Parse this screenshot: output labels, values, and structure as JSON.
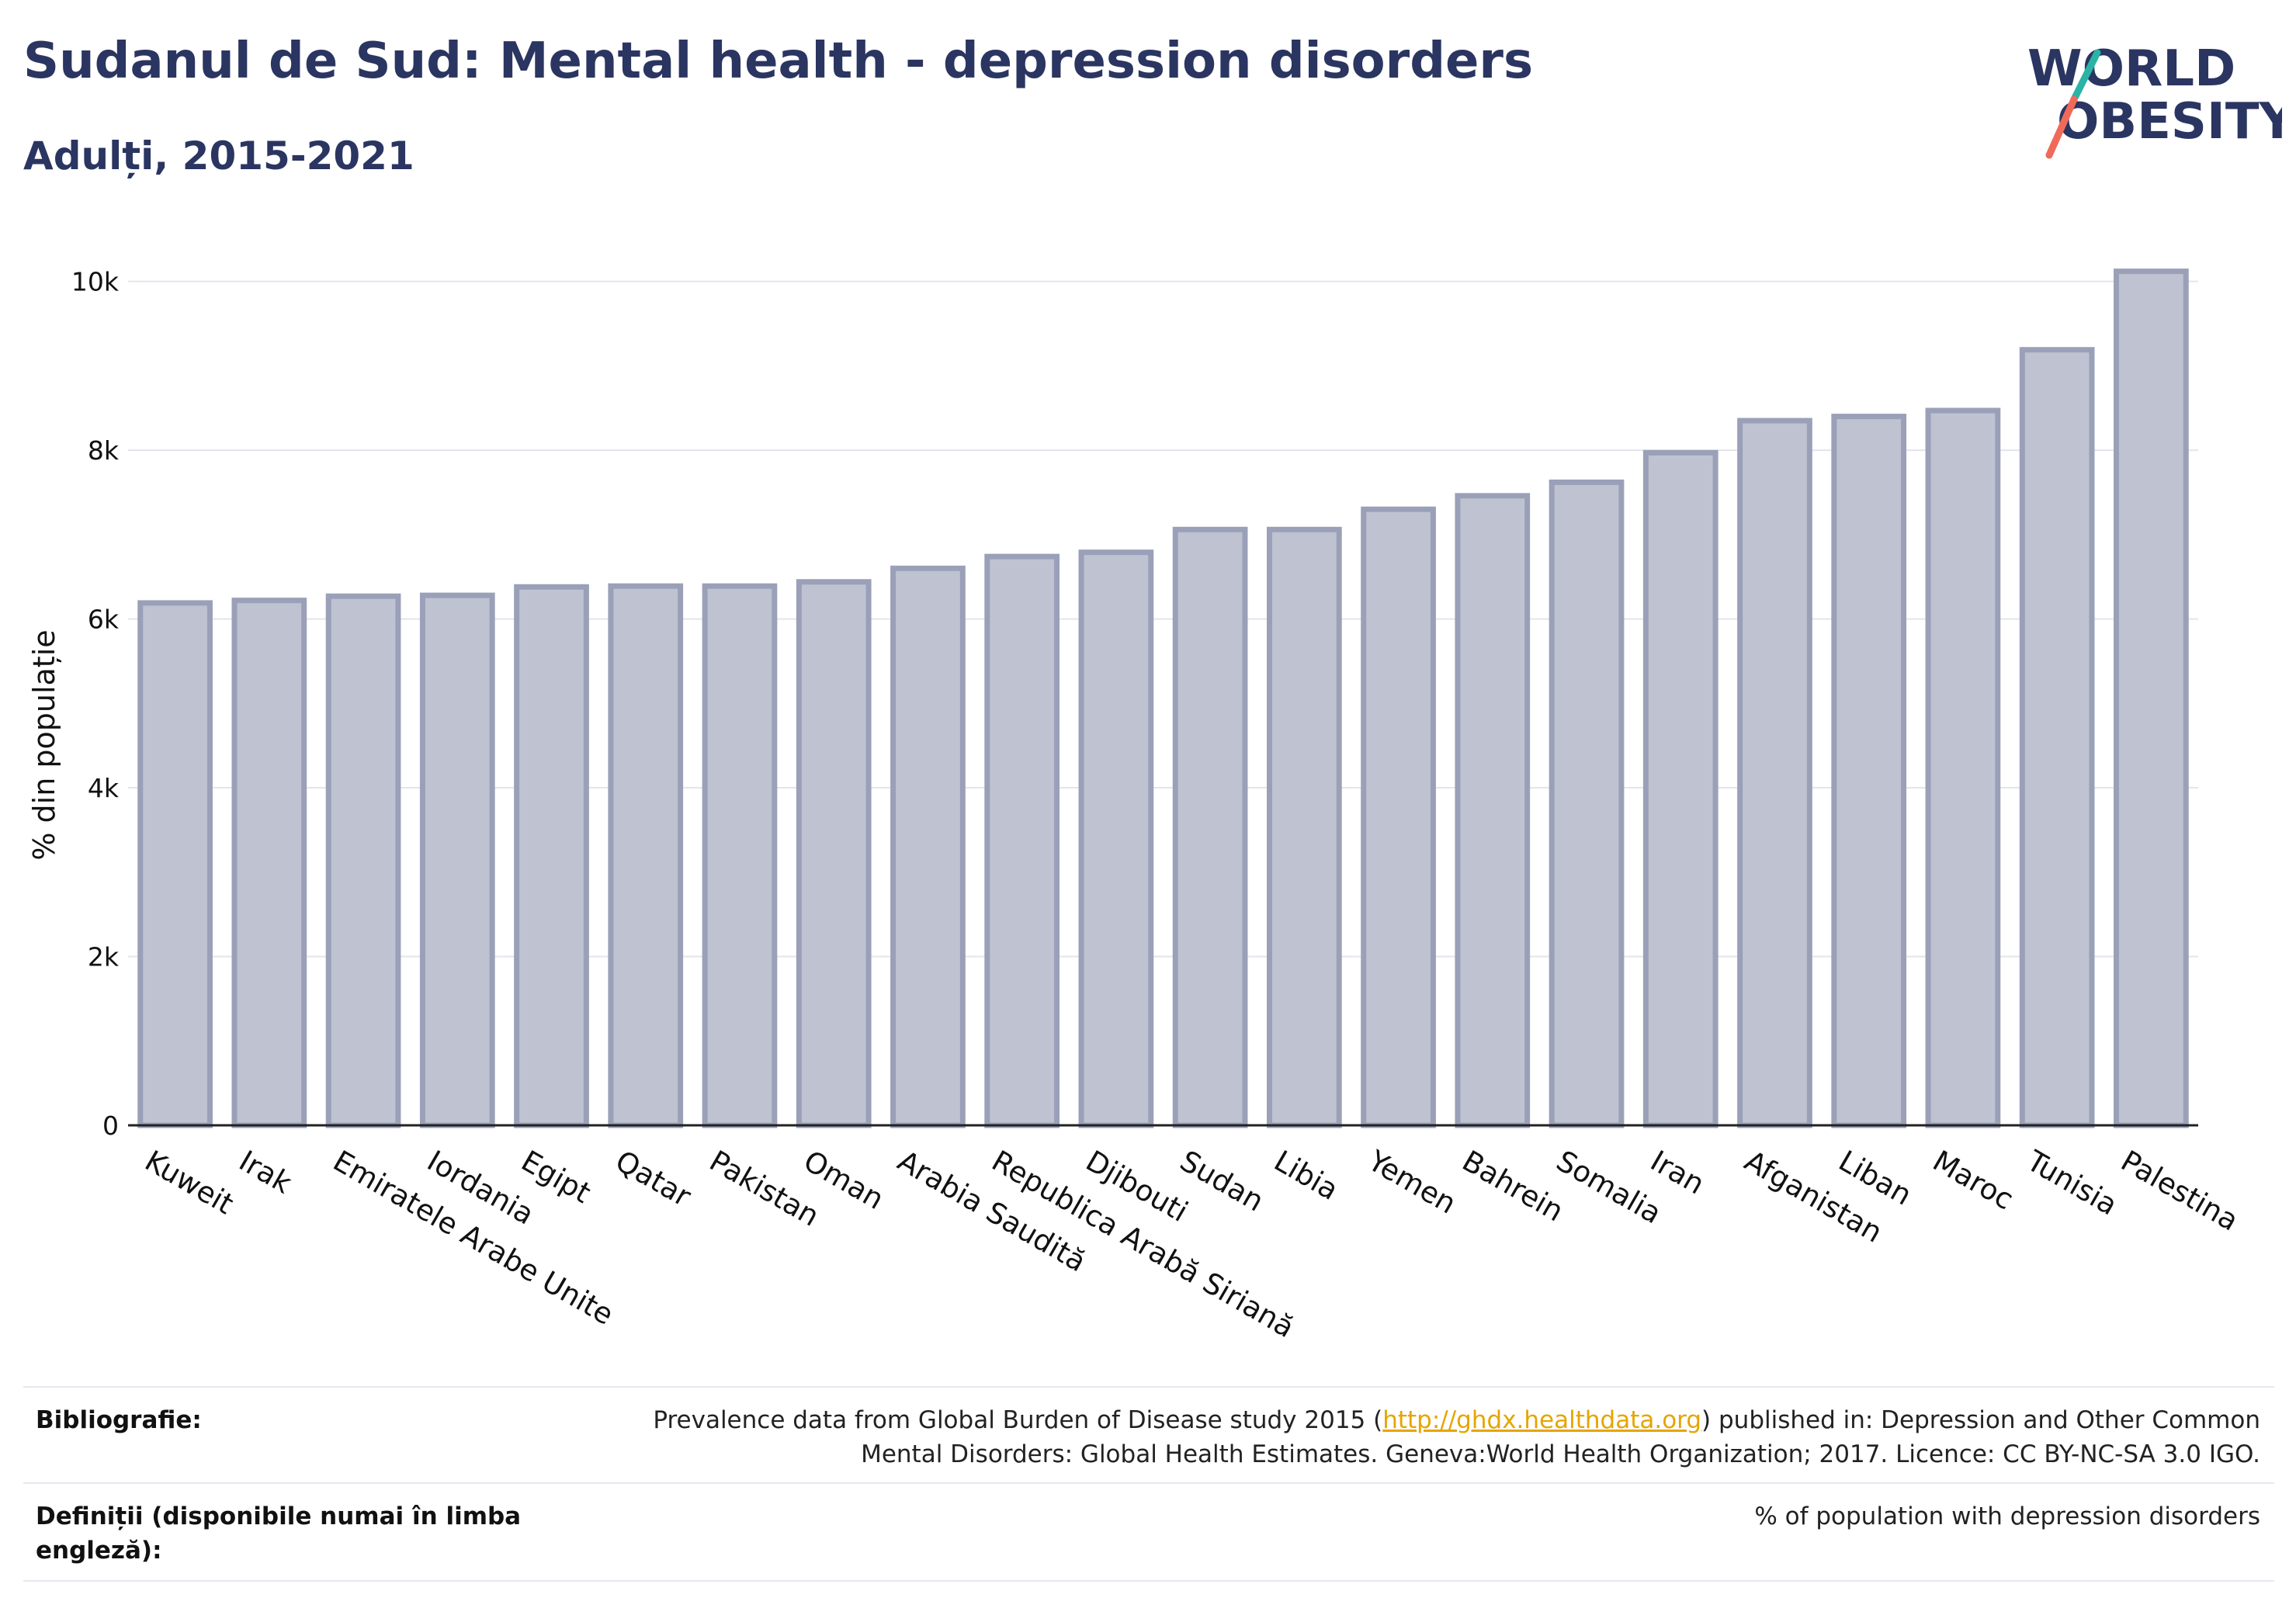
{
  "header": {
    "title": "Sudanul de Sud: Mental health - depression disorders",
    "subtitle": "Adulți, 2015-2021"
  },
  "logo": {
    "line1": "WORLD",
    "line2": "OBESITY",
    "colors": {
      "text": "#2b3561",
      "teal": "#2bb3a6",
      "coral": "#f06a5a"
    }
  },
  "chart_data": {
    "type": "bar",
    "ylabel": "% din populație",
    "xlabel": "",
    "ylim": [
      0,
      10300
    ],
    "yticks": [
      0,
      2000,
      4000,
      6000,
      8000,
      10000
    ],
    "ytick_labels": [
      "0",
      "2k",
      "4k",
      "6k",
      "8k",
      "10k"
    ],
    "grid": true,
    "bar_fill": "#bfc2d0",
    "bar_stroke": "#9aa0b8",
    "categories": [
      "Kuweit",
      "Irak",
      "Emiratele Arabe Unite",
      "Iordania",
      "Egipt",
      "Qatar",
      "Pakistan",
      "Oman",
      "Arabia Saudită",
      "Republica Arabă Siriană",
      "Djibouti",
      "Sudan",
      "Libia",
      "Yemen",
      "Bahrein",
      "Somalia",
      "Iran",
      "Afganistan",
      "Liban",
      "Maroc",
      "Tunisia",
      "Palestina"
    ],
    "values": [
      6190,
      6220,
      6270,
      6280,
      6380,
      6390,
      6390,
      6440,
      6600,
      6740,
      6790,
      7060,
      7060,
      7300,
      7460,
      7620,
      7970,
      8350,
      8400,
      8470,
      9190,
      10120
    ]
  },
  "footer": {
    "bibliography_label": "Bibliografie:",
    "bibliography_pre": "Prevalence data from Global Burden of Disease study 2015 (",
    "bibliography_link": "http://ghdx.healthdata.org",
    "bibliography_post": ") published in: Depression and Other Common",
    "bibliography_line2": "Mental Disorders: Global Health Estimates. Geneva:World Health Organization; 2017. Licence: CC BY-NC-SA 3.0 IGO.",
    "definitions_label_1": "Definiții (disponibile numai în limba",
    "definitions_label_2": "engleză):",
    "definitions_text": "% of population with depression disorders"
  }
}
